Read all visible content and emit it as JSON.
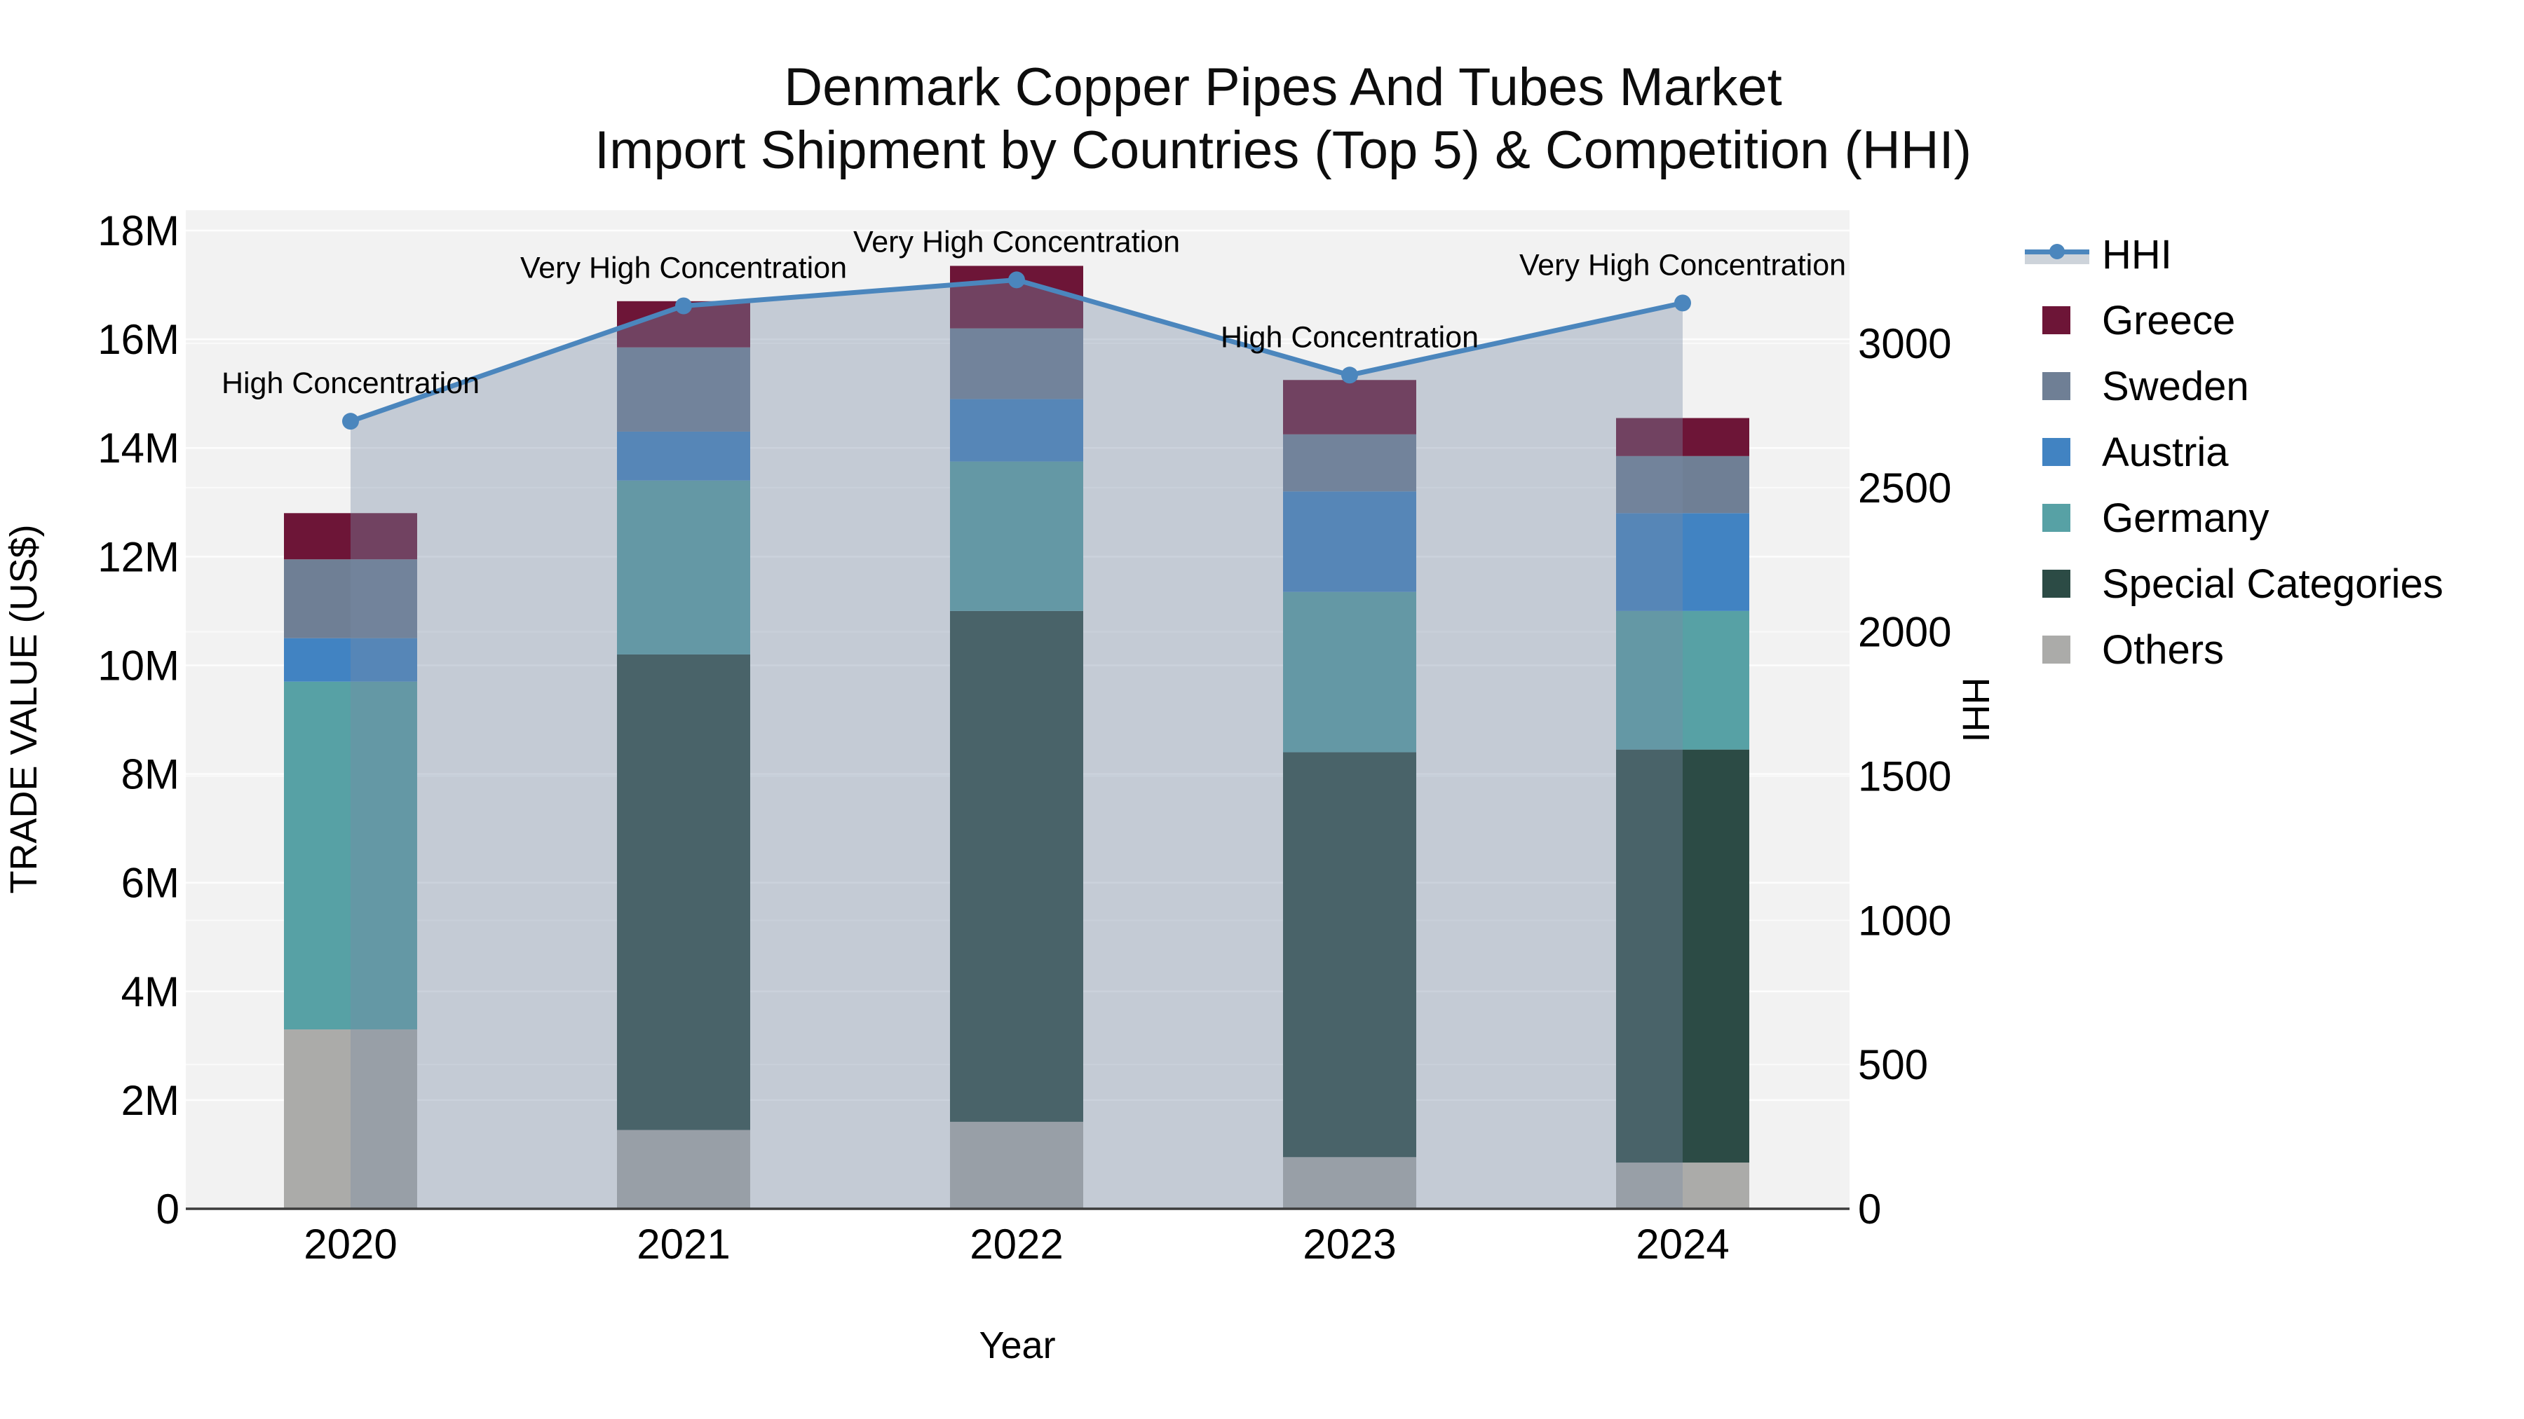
{
  "title": {
    "line1": "Denmark Copper Pipes And Tubes Market",
    "line2": "Import Shipment by Countries (Top 5) & Competition (HHI)"
  },
  "legend": {
    "items": [
      {
        "id": "hhi",
        "label": "HHI",
        "type": "line",
        "color": "#4b86bd",
        "band_color": "#cdd3da"
      },
      {
        "id": "greece",
        "label": "Greece",
        "type": "swatch",
        "color": "#6d1537"
      },
      {
        "id": "sweden",
        "label": "Sweden",
        "type": "swatch",
        "color": "#6f7f95"
      },
      {
        "id": "austria",
        "label": "Austria",
        "type": "swatch",
        "color": "#4183c2"
      },
      {
        "id": "germany",
        "label": "Germany",
        "type": "swatch",
        "color": "#57a1a5"
      },
      {
        "id": "special-categories",
        "label": "Special Categories",
        "type": "swatch",
        "color": "#2c4b45"
      },
      {
        "id": "others",
        "label": "Others",
        "type": "swatch",
        "color": "#ababa9"
      }
    ]
  },
  "chart_data": {
    "type": "bar",
    "subtype": "stacked-bars-with-line-overlay",
    "title": "Denmark Copper Pipes And Tubes Market — Import Shipment by Countries (Top 5) & Competition (HHI)",
    "unit_bars": "Trade value, million US$",
    "unit_line": "HHI index points",
    "categories": [
      "2020",
      "2021",
      "2022",
      "2023",
      "2024"
    ],
    "series": [
      {
        "name": "Others",
        "color": "#ababa9",
        "values": [
          3.3,
          1.45,
          1.6,
          0.95,
          0.85
        ]
      },
      {
        "name": "Special Categories",
        "color": "#2c4b45",
        "values": [
          0,
          8.75,
          9.4,
          7.45,
          7.6
        ]
      },
      {
        "name": "Germany",
        "color": "#57a1a5",
        "values": [
          6.4,
          3.2,
          2.75,
          2.95,
          2.55
        ]
      },
      {
        "name": "Austria",
        "color": "#4183c2",
        "values": [
          0.8,
          0.9,
          1.15,
          1.85,
          1.8
        ]
      },
      {
        "name": "Sweden",
        "color": "#6f7f95",
        "values": [
          1.45,
          1.55,
          1.3,
          1.05,
          1.05
        ]
      },
      {
        "name": "Greece",
        "color": "#6d1537",
        "values": [
          0.85,
          0.85,
          1.15,
          1.0,
          0.7
        ]
      }
    ],
    "bar_totals_millions": [
      12.8,
      16.7,
      17.35,
      15.25,
      14.55
    ],
    "line_series": {
      "name": "HHI",
      "color": "#4b86bd",
      "area_fill": "rgba(120,140,165,0.38)",
      "values": [
        2730,
        3130,
        3220,
        2890,
        3140
      ]
    },
    "annotations": [
      {
        "category": "2020",
        "text": "High Concentration"
      },
      {
        "category": "2021",
        "text": "Very High Concentration"
      },
      {
        "category": "2022",
        "text": "Very High Concentration"
      },
      {
        "category": "2023",
        "text": "High Concentration"
      },
      {
        "category": "2024",
        "text": "Very High Concentration"
      }
    ],
    "axes": {
      "x": {
        "label": "Year",
        "tick_labels": [
          "2020",
          "2021",
          "2022",
          "2023",
          "2024"
        ]
      },
      "left": {
        "label": "TRADE VALUE (US$)",
        "ticks": [
          {
            "v": 0,
            "label": "0"
          },
          {
            "v": 2,
            "label": "2M"
          },
          {
            "v": 4,
            "label": "4M"
          },
          {
            "v": 6,
            "label": "6M"
          },
          {
            "v": 8,
            "label": "8M"
          },
          {
            "v": 10,
            "label": "10M"
          },
          {
            "v": 12,
            "label": "12M"
          },
          {
            "v": 14,
            "label": "14M"
          },
          {
            "v": 16,
            "label": "16M"
          },
          {
            "v": 18,
            "label": "18M"
          }
        ],
        "range": [
          0,
          18.4
        ]
      },
      "right": {
        "label": "HHI",
        "ticks": [
          {
            "v": 0,
            "label": "0"
          },
          {
            "v": 500,
            "label": "500"
          },
          {
            "v": 1000,
            "label": "1000"
          },
          {
            "v": 1500,
            "label": "1500"
          },
          {
            "v": 2000,
            "label": "2000"
          },
          {
            "v": 2500,
            "label": "2500"
          },
          {
            "v": 3000,
            "label": "3000"
          }
        ],
        "range": [
          0,
          3440
        ]
      }
    },
    "plot_background": "#f2f2f2",
    "grid": true,
    "legend_position": "right"
  }
}
